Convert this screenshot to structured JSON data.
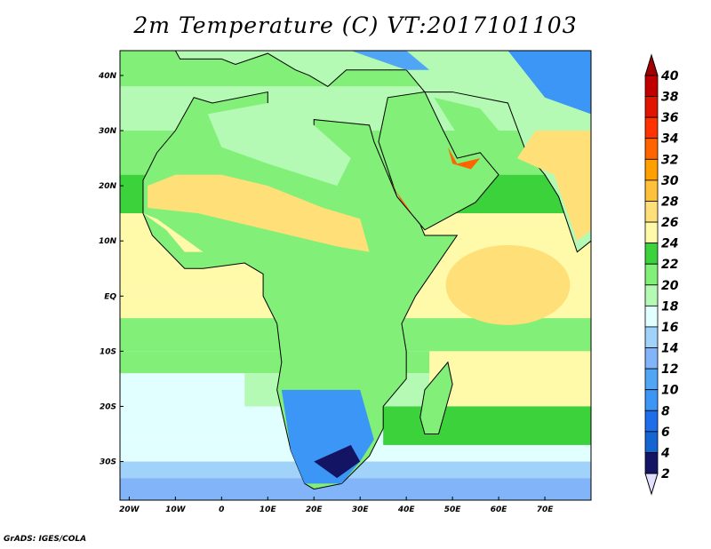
{
  "title": "2m Temperature (C) VT:2017101103",
  "footer": "GrADS: IGES/COLA",
  "map": {
    "lon_range": [
      -22,
      80
    ],
    "lat_range": [
      -37,
      44.5
    ],
    "x_ticks": [
      {
        "lon": -20,
        "label": "20W"
      },
      {
        "lon": -10,
        "label": "10W"
      },
      {
        "lon": 0,
        "label": "0"
      },
      {
        "lon": 10,
        "label": "10E"
      },
      {
        "lon": 20,
        "label": "20E"
      },
      {
        "lon": 30,
        "label": "30E"
      },
      {
        "lon": 40,
        "label": "40E"
      },
      {
        "lon": 50,
        "label": "50E"
      },
      {
        "lon": 60,
        "label": "60E"
      },
      {
        "lon": 70,
        "label": "70E"
      }
    ],
    "y_ticks": [
      {
        "lat": 40,
        "label": "40N"
      },
      {
        "lat": 30,
        "label": "30N"
      },
      {
        "lat": 20,
        "label": "20N"
      },
      {
        "lat": 10,
        "label": "10N"
      },
      {
        "lat": 0,
        "label": "EQ"
      },
      {
        "lat": -10,
        "label": "10S"
      },
      {
        "lat": -20,
        "label": "20S"
      },
      {
        "lat": -30,
        "label": "30S"
      }
    ]
  },
  "colorbar": {
    "labels": [
      "40",
      "38",
      "36",
      "34",
      "32",
      "30",
      "28",
      "26",
      "24",
      "22",
      "20",
      "18",
      "16",
      "14",
      "12",
      "10",
      "8",
      "6",
      "4",
      "2"
    ],
    "above_color": "#a00000",
    "below_color": "#e1e1ff",
    "colors_top_to_bottom": [
      "#c00000",
      "#e11400",
      "#ff3200",
      "#ff6400",
      "#ffa000",
      "#ffc03c",
      "#ffe078",
      "#fffaaa",
      "#3cd23c",
      "#82f078",
      "#b4fab4",
      "#e1ffff",
      "#a0d2fa",
      "#82b4fa",
      "#50a5f5",
      "#3c96f5",
      "#1e6eeb",
      "#1464d2",
      "#141464"
    ]
  }
}
